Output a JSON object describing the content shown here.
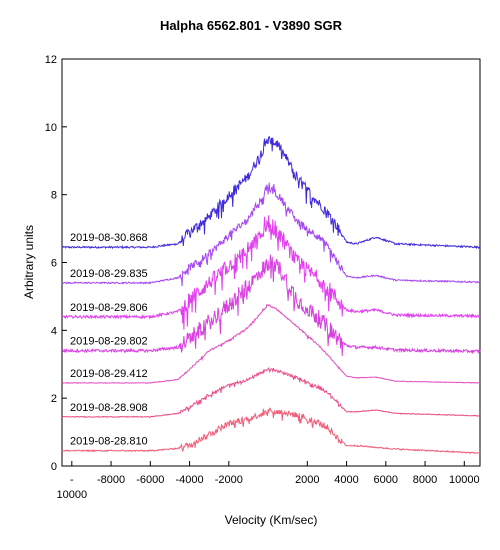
{
  "chart_data": {
    "type": "line",
    "title": "Halpha 6562.801 - V3890 SGR",
    "xlabel": "Velocity (Km/sec)",
    "ylabel": "Arbitrary units",
    "xlim": [
      -10500,
      10800
    ],
    "ylim": [
      0,
      12
    ],
    "x_ticks": [
      -10000,
      -8000,
      -6000,
      -4000,
      -2000,
      2000,
      4000,
      6000,
      8000,
      10000
    ],
    "x_tick_labels": [
      "-\n10000",
      "-8000",
      "-6000",
      "-4000",
      "-2000",
      "2000",
      "4000",
      "6000",
      "8000",
      "10000"
    ],
    "y_ticks": [
      0,
      2,
      4,
      6,
      8,
      10,
      12
    ],
    "grid": false,
    "legend": "none",
    "series": [
      {
        "name": "2019-08-30.868",
        "color": "#3f2bd9",
        "noise": 0.28,
        "points": [
          [
            -10500,
            6.45
          ],
          [
            -6000,
            6.45
          ],
          [
            -4600,
            6.55
          ],
          [
            -4000,
            6.9
          ],
          [
            -3000,
            7.35
          ],
          [
            -2000,
            8.0
          ],
          [
            -1000,
            8.55
          ],
          [
            0,
            9.6
          ],
          [
            500,
            9.5
          ],
          [
            1500,
            8.5
          ],
          [
            2500,
            7.8
          ],
          [
            3000,
            7.5
          ],
          [
            3600,
            7.0
          ],
          [
            4000,
            6.6
          ],
          [
            4500,
            6.55
          ],
          [
            5500,
            6.75
          ],
          [
            6500,
            6.55
          ],
          [
            10800,
            6.45
          ]
        ]
      },
      {
        "name": "2019-08-29.835",
        "color": "#a64af0",
        "noise": 0.22,
        "points": [
          [
            -10500,
            5.4
          ],
          [
            -6000,
            5.4
          ],
          [
            -4600,
            5.55
          ],
          [
            -4000,
            5.85
          ],
          [
            -3000,
            6.25
          ],
          [
            -2000,
            6.8
          ],
          [
            -1000,
            7.3
          ],
          [
            0,
            8.2
          ],
          [
            500,
            8.0
          ],
          [
            1500,
            7.2
          ],
          [
            2500,
            6.8
          ],
          [
            3000,
            6.5
          ],
          [
            3600,
            5.95
          ],
          [
            4000,
            5.6
          ],
          [
            4500,
            5.55
          ],
          [
            5500,
            5.62
          ],
          [
            6500,
            5.48
          ],
          [
            10800,
            5.42
          ]
        ]
      },
      {
        "name": "2019-08-29.806",
        "color": "#e23ff0",
        "noise": 0.45,
        "points": [
          [
            -10500,
            4.4
          ],
          [
            -6000,
            4.4
          ],
          [
            -4600,
            4.55
          ],
          [
            -4000,
            4.9
          ],
          [
            -3000,
            5.4
          ],
          [
            -2000,
            5.9
          ],
          [
            -1000,
            6.4
          ],
          [
            0,
            7.0
          ],
          [
            500,
            6.9
          ],
          [
            1500,
            6.0
          ],
          [
            2500,
            5.55
          ],
          [
            3000,
            5.3
          ],
          [
            3600,
            4.85
          ],
          [
            4000,
            4.6
          ],
          [
            4500,
            4.55
          ],
          [
            5500,
            4.6
          ],
          [
            6500,
            4.45
          ],
          [
            10800,
            4.42
          ]
        ]
      },
      {
        "name": "2019-08-29.802",
        "color": "#d840e0",
        "noise": 0.5,
        "points": [
          [
            -10500,
            3.4
          ],
          [
            -6000,
            3.4
          ],
          [
            -4600,
            3.5
          ],
          [
            -4000,
            3.75
          ],
          [
            -3000,
            4.25
          ],
          [
            -2000,
            4.75
          ],
          [
            -1000,
            5.3
          ],
          [
            0,
            6.0
          ],
          [
            500,
            5.9
          ],
          [
            1500,
            4.9
          ],
          [
            2500,
            4.4
          ],
          [
            3000,
            4.1
          ],
          [
            3600,
            3.75
          ],
          [
            4000,
            3.55
          ],
          [
            4500,
            3.5
          ],
          [
            5500,
            3.5
          ],
          [
            6500,
            3.42
          ],
          [
            10800,
            3.38
          ]
        ]
      },
      {
        "name": "2019-08-29.412",
        "color": "#e04fc0",
        "noise": 0.04,
        "points": [
          [
            -10500,
            2.45
          ],
          [
            -6000,
            2.45
          ],
          [
            -4600,
            2.55
          ],
          [
            -4000,
            2.85
          ],
          [
            -3000,
            3.4
          ],
          [
            -2000,
            3.7
          ],
          [
            -1000,
            4.1
          ],
          [
            0,
            4.75
          ],
          [
            500,
            4.6
          ],
          [
            1500,
            4.1
          ],
          [
            2500,
            3.6
          ],
          [
            3000,
            3.3
          ],
          [
            3600,
            2.9
          ],
          [
            4000,
            2.65
          ],
          [
            4500,
            2.6
          ],
          [
            5500,
            2.62
          ],
          [
            6500,
            2.5
          ],
          [
            10800,
            2.45
          ]
        ]
      },
      {
        "name": "2019-08-28.908",
        "color": "#e8508a",
        "noise": 0.08,
        "points": [
          [
            -10500,
            1.45
          ],
          [
            -6000,
            1.45
          ],
          [
            -4600,
            1.55
          ],
          [
            -4000,
            1.75
          ],
          [
            -3000,
            2.1
          ],
          [
            -2000,
            2.4
          ],
          [
            -1000,
            2.55
          ],
          [
            0,
            2.85
          ],
          [
            500,
            2.8
          ],
          [
            1500,
            2.6
          ],
          [
            2500,
            2.35
          ],
          [
            3000,
            2.2
          ],
          [
            3600,
            1.85
          ],
          [
            4000,
            1.6
          ],
          [
            4500,
            1.6
          ],
          [
            5500,
            1.65
          ],
          [
            6500,
            1.55
          ],
          [
            10800,
            1.48
          ]
        ]
      },
      {
        "name": "2019-08-28.810",
        "color": "#f0607a",
        "noise": 0.18,
        "points": [
          [
            -10500,
            0.45
          ],
          [
            -6000,
            0.45
          ],
          [
            -4600,
            0.52
          ],
          [
            -4000,
            0.62
          ],
          [
            -3000,
            0.95
          ],
          [
            -2000,
            1.25
          ],
          [
            -1000,
            1.4
          ],
          [
            0,
            1.6
          ],
          [
            500,
            1.6
          ],
          [
            1500,
            1.5
          ],
          [
            2500,
            1.3
          ],
          [
            3000,
            1.15
          ],
          [
            3600,
            0.8
          ],
          [
            4000,
            0.6
          ],
          [
            4500,
            0.6
          ],
          [
            5500,
            0.55
          ],
          [
            6500,
            0.5
          ],
          [
            10800,
            0.38
          ]
        ]
      }
    ]
  }
}
